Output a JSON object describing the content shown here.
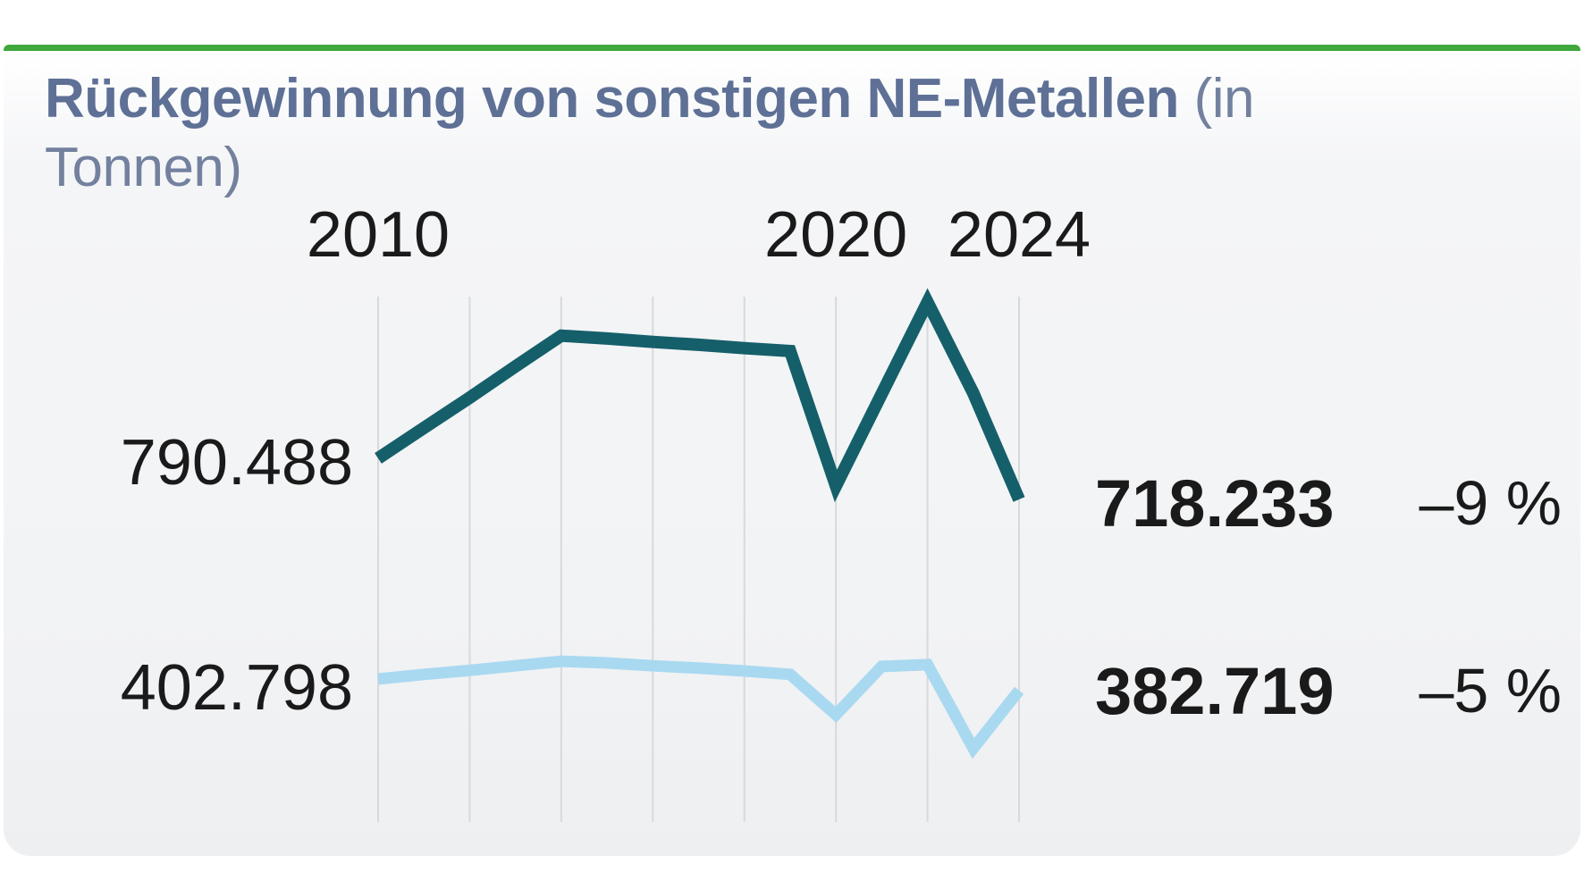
{
  "title": {
    "line1_bold": "Rückgewinnung von sonstigen NE-Metallen",
    "line1_light": "(in",
    "line2_light": "Tonnen)"
  },
  "labels": {
    "start_dark": "790.488",
    "start_light": "402.798",
    "end_dark": "718.233",
    "end_light": "382.719",
    "change_dark": "–9 %",
    "change_light": "–5 %"
  },
  "colors": {
    "accent_green": "#3fa73c",
    "series_dark": "#155f6a",
    "series_light": "#a9d9f0",
    "gridline": "#d7d9dc",
    "title": "#5e7095",
    "title_light": "#73819f",
    "text": "#1a1a1a"
  },
  "chart_data": {
    "type": "line",
    "title": "Rückgewinnung von sonstigen NE-Metallen (in Tonnen)",
    "unit": "Tonnen",
    "grid": "vertical-only",
    "legend": "none",
    "x": [
      2010,
      2011,
      2012,
      2013,
      2014,
      2015,
      2016,
      2017,
      2018,
      2019,
      2020,
      2021,
      2022,
      2023,
      2024
    ],
    "xlim": [
      2010,
      2024
    ],
    "ylim": [
      240000,
      1120000
    ],
    "gridline_years": [
      2010,
      2012,
      2014,
      2016,
      2018,
      2020,
      2022,
      2024
    ],
    "x_tick_labels": [
      {
        "year": 2010,
        "label": "2010"
      },
      {
        "year": 2020,
        "label": "2020"
      },
      {
        "year": 2024,
        "label": "2024"
      }
    ],
    "series": [
      {
        "name": "series_dark_teal",
        "color": "#155f6a",
        "stroke_width": 14,
        "values": [
          790488,
          844000,
          897000,
          952000,
          1006000,
          1001000,
          995000,
          990000,
          984000,
          979000,
          742000,
          904000,
          1065000,
          905000,
          718233
        ]
      },
      {
        "name": "series_light_blue",
        "color": "#a9d9f0",
        "stroke_width": 13,
        "values": [
          402798,
          411000,
          418000,
          426000,
          434000,
          431000,
          426000,
          422000,
          417000,
          411000,
          340000,
          425000,
          428000,
          281000,
          382719
        ]
      }
    ],
    "annotations": {
      "series_dark_teal": {
        "start_label": "790.488",
        "end_label": "718.233",
        "total_change": "–9 %"
      },
      "series_light_blue": {
        "start_label": "402.798",
        "end_label": "382.719",
        "total_change": "–5 %"
      }
    }
  }
}
